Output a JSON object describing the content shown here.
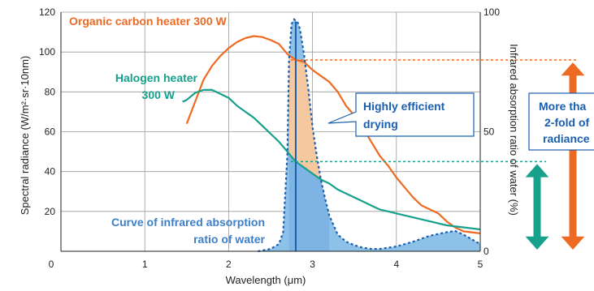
{
  "chart_data": {
    "type": "line",
    "x_axis": {
      "label": "Wavelength (μm)",
      "range": [
        0,
        5
      ],
      "ticks": [
        0,
        1,
        2,
        3,
        4,
        5
      ]
    },
    "y_left": {
      "label": "Spectral radiance (W/m²·sr·10nm)",
      "range": [
        0,
        120
      ],
      "ticks": [
        20,
        40,
        60,
        80,
        100,
        120
      ]
    },
    "y_right": {
      "label": "Infrared absorption ratio of water (%)",
      "range": [
        0,
        100
      ],
      "ticks": [
        0,
        50,
        100
      ]
    },
    "grid": true,
    "series": [
      {
        "name": "Organic carbon heater 300 W",
        "axis": "left",
        "color": "#EE6A22",
        "points": [
          [
            1.5,
            64
          ],
          [
            1.6,
            75
          ],
          [
            1.7,
            86
          ],
          [
            1.8,
            93
          ],
          [
            1.9,
            98
          ],
          [
            2.0,
            102
          ],
          [
            2.1,
            105
          ],
          [
            2.2,
            107
          ],
          [
            2.3,
            108
          ],
          [
            2.4,
            107.5
          ],
          [
            2.5,
            106
          ],
          [
            2.6,
            104
          ],
          [
            2.7,
            99
          ],
          [
            2.8,
            96
          ],
          [
            2.9,
            95
          ],
          [
            3.0,
            91
          ],
          [
            3.1,
            88
          ],
          [
            3.2,
            85
          ],
          [
            3.3,
            80
          ],
          [
            3.4,
            73
          ],
          [
            3.5,
            68
          ],
          [
            3.6,
            62
          ],
          [
            3.7,
            55
          ],
          [
            3.8,
            48
          ],
          [
            3.9,
            43
          ],
          [
            4.0,
            37
          ],
          [
            4.1,
            32
          ],
          [
            4.2,
            27
          ],
          [
            4.3,
            23
          ],
          [
            4.4,
            21
          ],
          [
            4.5,
            19
          ],
          [
            4.6,
            15
          ],
          [
            4.7,
            12
          ],
          [
            4.8,
            10
          ],
          [
            4.9,
            9.5
          ],
          [
            5.0,
            9
          ]
        ]
      },
      {
        "name": "Halogen heater 300 W",
        "axis": "left",
        "color": "#17A08B",
        "points": [
          [
            1.45,
            75
          ],
          [
            1.5,
            76
          ],
          [
            1.6,
            79.5
          ],
          [
            1.7,
            81
          ],
          [
            1.8,
            81
          ],
          [
            1.9,
            79
          ],
          [
            2.0,
            77
          ],
          [
            2.1,
            73
          ],
          [
            2.2,
            70
          ],
          [
            2.3,
            67
          ],
          [
            2.4,
            63
          ],
          [
            2.5,
            59
          ],
          [
            2.6,
            55
          ],
          [
            2.7,
            50
          ],
          [
            2.8,
            45
          ],
          [
            2.9,
            42
          ],
          [
            3.0,
            39
          ],
          [
            3.1,
            36
          ],
          [
            3.2,
            34
          ],
          [
            3.3,
            31
          ],
          [
            3.4,
            29
          ],
          [
            3.5,
            27
          ],
          [
            3.6,
            25
          ],
          [
            3.7,
            23
          ],
          [
            3.8,
            21
          ],
          [
            3.9,
            20
          ],
          [
            4.0,
            19
          ],
          [
            4.2,
            17
          ],
          [
            4.4,
            15
          ],
          [
            4.6,
            13
          ],
          [
            4.8,
            12
          ],
          [
            5.0,
            11
          ]
        ]
      },
      {
        "name": "Curve of infrared absorption ratio of water",
        "axis": "right",
        "color": "#1A5FAF",
        "points": [
          [
            2.35,
            0
          ],
          [
            2.5,
            1
          ],
          [
            2.6,
            3
          ],
          [
            2.65,
            8
          ],
          [
            2.7,
            40
          ],
          [
            2.72,
            80
          ],
          [
            2.75,
            95
          ],
          [
            2.78,
            97
          ],
          [
            2.82,
            96
          ],
          [
            2.85,
            93
          ],
          [
            2.9,
            82
          ],
          [
            2.95,
            68
          ],
          [
            3.0,
            52
          ],
          [
            3.05,
            40
          ],
          [
            3.1,
            30
          ],
          [
            3.15,
            22
          ],
          [
            3.2,
            15
          ],
          [
            3.25,
            11
          ],
          [
            3.3,
            7
          ],
          [
            3.4,
            4
          ],
          [
            3.5,
            2.5
          ],
          [
            3.6,
            1.5
          ],
          [
            3.7,
            1
          ],
          [
            3.8,
            1
          ],
          [
            4.0,
            2
          ],
          [
            4.2,
            4
          ],
          [
            4.4,
            6.5
          ],
          [
            4.6,
            8
          ],
          [
            4.7,
            8.5
          ],
          [
            4.8,
            7
          ],
          [
            4.9,
            5
          ],
          [
            5.0,
            3
          ]
        ]
      }
    ],
    "annotations": {
      "organic_label": "Organic carbon heater 300 W",
      "halogen_label_line1": "Halogen heater",
      "halogen_label_line2": "300 W",
      "water_label_line1": "Curve of infrared absorption",
      "water_label_line2": "ratio of water",
      "efficient_line1": "Highly efficient",
      "efficient_line2": "drying",
      "fold_line1": "More tha",
      "fold_line2": "2-fold of",
      "fold_line3": "radiance"
    },
    "reference_lines": {
      "organic_at_peak": 96,
      "halogen_at_peak": 45,
      "water_peak_x": 2.8
    },
    "colors": {
      "orange": "#EE6A22",
      "teal": "#17A08B",
      "blue": "#1A5FAF",
      "blue_fill": "#8EC1E8",
      "peach_fill": "#F6C8A0",
      "callout_text": "#1A5FAF"
    }
  }
}
